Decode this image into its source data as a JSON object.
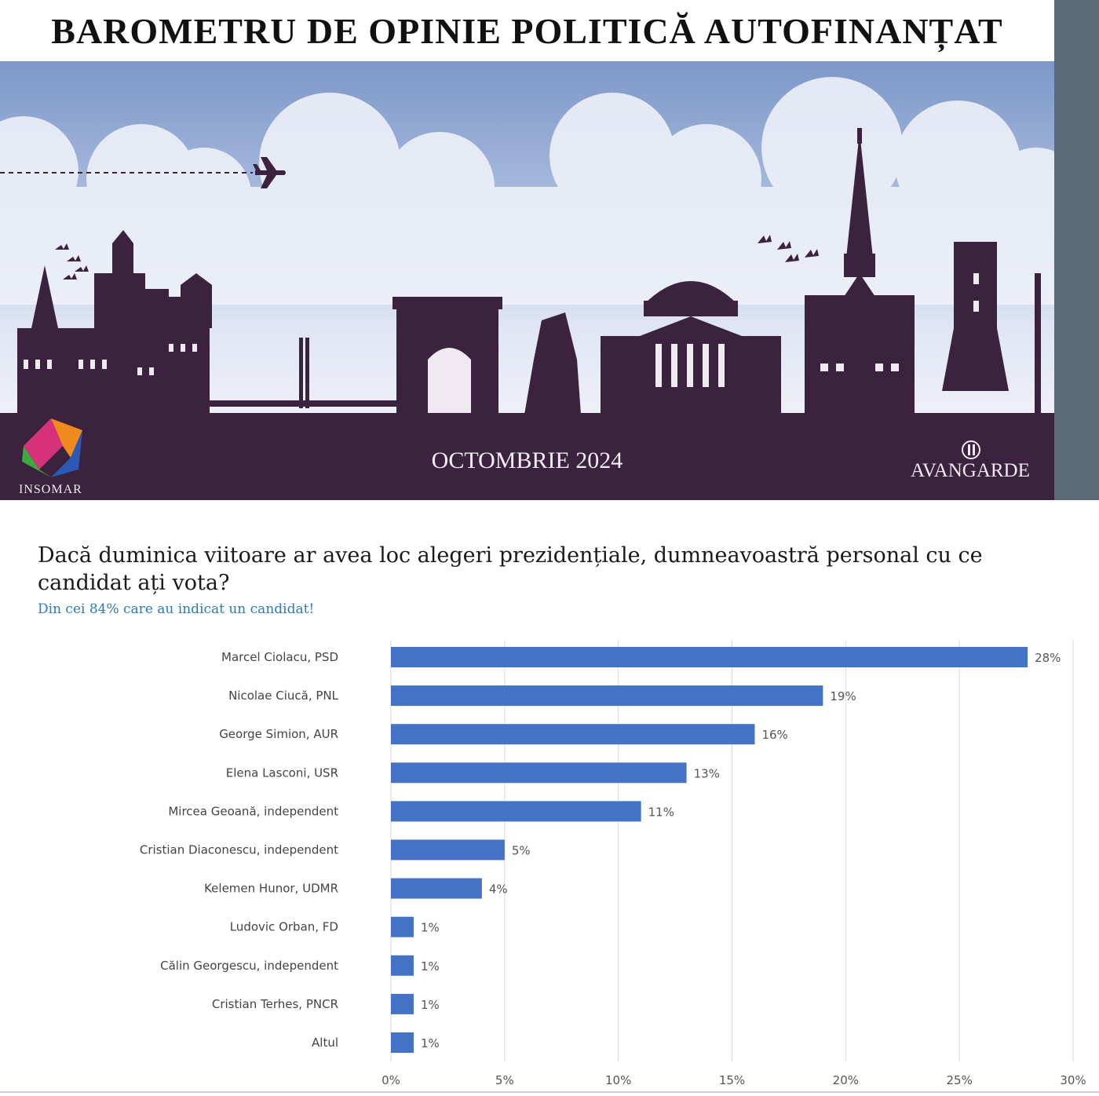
{
  "header": {
    "title": "BAROMETRU DE OPINIE POLITICĂ AUTOFINANȚAT"
  },
  "banner": {
    "date": "OCTOMBRIE 2024",
    "left_logo": "INSOMAR",
    "right_logo": "AVANGARDE"
  },
  "colors": {
    "bar": "#4472c4",
    "banner_dark": "#3b2340",
    "side_bar": "#5a6b78"
  },
  "chart_data": {
    "type": "bar",
    "orientation": "horizontal",
    "title": "Dacă duminica viitoare ar avea loc alegeri prezidențiale, dumneavoastră personal cu ce candidat ați vota?",
    "subtitle": "Din cei 84% care au indicat un candidat!",
    "categories": [
      "Marcel Ciolacu, PSD",
      "Nicolae Ciucă, PNL",
      "George Simion, AUR",
      "Elena Lasconi, USR",
      "Mircea Geoană, independent",
      "Cristian Diaconescu, independent",
      "Kelemen Hunor, UDMR",
      "Ludovic Orban, FD",
      "Călin Georgescu, independent",
      "Cristian Terhes, PNCR",
      "Altul"
    ],
    "values": [
      28,
      19,
      16,
      13,
      11,
      5,
      4,
      1,
      1,
      1,
      1
    ],
    "value_labels": [
      "28%",
      "19%",
      "16%",
      "13%",
      "11%",
      "5%",
      "4%",
      "1%",
      "1%",
      "1%",
      "1%"
    ],
    "xlim": [
      0,
      30
    ],
    "xticks": [
      "0%",
      "5%",
      "10%",
      "15%",
      "20%",
      "25%",
      "30%"
    ],
    "grid": "vertical"
  }
}
